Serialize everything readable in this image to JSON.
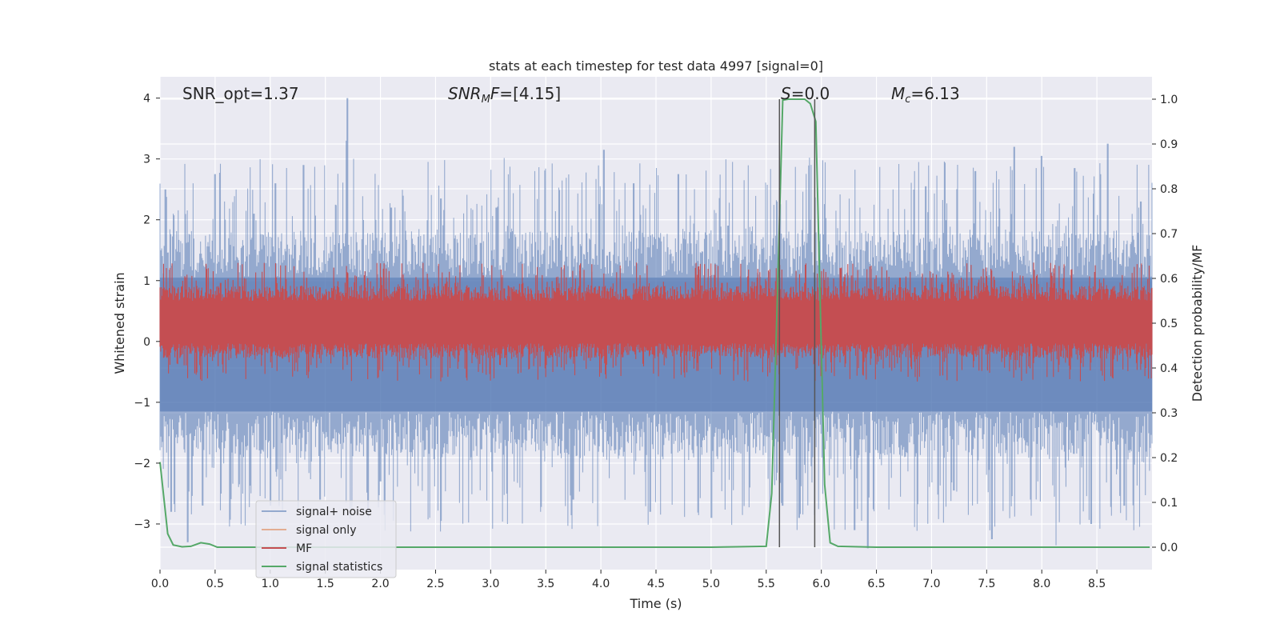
{
  "chart_data": {
    "type": "line",
    "title": "stats at each timestep for test data 4997 [signal=0]",
    "xlabel": "Time (s)",
    "ylabel_left": "Whitened strain",
    "ylabel_right": "Detection probability/MF",
    "xlim": [
      0.0,
      9.0
    ],
    "ylim_left": [
      -3.75,
      4.35
    ],
    "ylim_right": [
      -0.05,
      1.05
    ],
    "x_ticks": [
      0.0,
      0.5,
      1.0,
      1.5,
      2.0,
      2.5,
      3.0,
      3.5,
      4.0,
      4.5,
      5.0,
      5.5,
      6.0,
      6.5,
      7.0,
      7.5,
      8.0,
      8.5
    ],
    "x_tick_labels": [
      "0.0",
      "0.5",
      "1.0",
      "1.5",
      "2.0",
      "2.5",
      "3.0",
      "3.5",
      "4.0",
      "4.5",
      "5.0",
      "5.5",
      "6.0",
      "6.5",
      "7.0",
      "7.5",
      "8.0",
      "8.5"
    ],
    "y_left_ticks": [
      -3,
      -2,
      -1,
      0,
      1,
      2,
      3,
      4
    ],
    "y_left_tick_labels": [
      "−3",
      "−2",
      "−1",
      "0",
      "1",
      "2",
      "3",
      "4"
    ],
    "y_right_ticks": [
      0.0,
      0.1,
      0.2,
      0.3,
      0.4,
      0.5,
      0.6,
      0.7,
      0.8,
      0.9,
      1.0
    ],
    "y_right_tick_labels": [
      "0.0",
      "0.1",
      "0.2",
      "0.3",
      "0.4",
      "0.5",
      "0.6",
      "0.7",
      "0.8",
      "0.9",
      "1.0"
    ],
    "grid": true,
    "legend_position": "lower-left",
    "legend": [
      {
        "name": "signal+ noise",
        "color": "#4c72b0"
      },
      {
        "name": "signal only",
        "color": "#dd8452"
      },
      {
        "name": "MF",
        "color": "#c44e52"
      },
      {
        "name": "signal statistics",
        "color": "#55a868"
      }
    ],
    "annotations": [
      {
        "id": "snr-opt",
        "prefix": "SNR_opt",
        "sub": "",
        "value": "1.37",
        "x": 0.2,
        "italic": false
      },
      {
        "id": "snr-mf",
        "prefix": "SNR",
        "sub": "M",
        "suffix": "F",
        "value": "[4.15]",
        "x": 2.6,
        "italic": true
      },
      {
        "id": "s-stat",
        "prefix": "S",
        "sub": "",
        "value": "0.0",
        "x": 5.6,
        "italic": true
      },
      {
        "id": "mc",
        "prefix": "M",
        "sub": "c",
        "value": "6.13",
        "x": 6.6,
        "italic": true
      }
    ],
    "series": [
      {
        "name": "signal+ noise",
        "axis": "left",
        "kind": "noise_band",
        "core_range": [
          -1.15,
          1.05
        ],
        "n_points": 1200,
        "spikes_up": [
          [
            0.05,
            2.5
          ],
          [
            0.3,
            2.6
          ],
          [
            0.5,
            2.75
          ],
          [
            0.85,
            2.1
          ],
          [
            1.05,
            2.6
          ],
          [
            1.3,
            2.9
          ],
          [
            1.7,
            4.0
          ],
          [
            1.69,
            3.3
          ],
          [
            2.1,
            2.2
          ],
          [
            2.55,
            2.35
          ],
          [
            3.05,
            2.2
          ],
          [
            3.4,
            2.8
          ],
          [
            4.03,
            3.15
          ],
          [
            4.3,
            2.6
          ],
          [
            4.7,
            2.75
          ],
          [
            5.3,
            2.65
          ],
          [
            5.9,
            2.0
          ],
          [
            6.35,
            2.2
          ],
          [
            6.65,
            2.5
          ],
          [
            6.95,
            2.55
          ],
          [
            7.4,
            2.8
          ],
          [
            7.75,
            3.2
          ],
          [
            8.0,
            3.05
          ],
          [
            8.3,
            2.85
          ],
          [
            8.6,
            3.25
          ],
          [
            8.9,
            2.3
          ]
        ],
        "spikes_down": [
          [
            0.1,
            -2.8
          ],
          [
            0.25,
            -3.3
          ],
          [
            0.55,
            -2.5
          ],
          [
            0.75,
            -2.5
          ],
          [
            1.0,
            -2.7
          ],
          [
            1.45,
            -2.6
          ],
          [
            2.0,
            -2.3
          ],
          [
            2.55,
            -2.95
          ],
          [
            3.15,
            -2.5
          ],
          [
            3.75,
            -2.6
          ],
          [
            4.45,
            -2.8
          ],
          [
            5.0,
            -2.9
          ],
          [
            5.35,
            -2.4
          ],
          [
            5.65,
            -2.7
          ],
          [
            5.8,
            -2.9
          ],
          [
            6.3,
            -3.1
          ],
          [
            6.42,
            -3.4
          ],
          [
            7.2,
            -2.45
          ],
          [
            7.55,
            -3.25
          ],
          [
            7.9,
            -2.6
          ],
          [
            8.13,
            -3.35
          ],
          [
            8.45,
            -3.0
          ],
          [
            8.75,
            -2.7
          ]
        ]
      },
      {
        "name": "MF",
        "axis": "right",
        "kind": "noise_band",
        "center": 0.5,
        "core_range": [
          0.455,
          0.55
        ],
        "n_points": 1400,
        "spikes_up": [
          [
            0.35,
            0.56
          ],
          [
            0.55,
            0.59
          ],
          [
            0.7,
            0.57
          ],
          [
            1.3,
            0.58
          ],
          [
            1.45,
            0.58
          ],
          [
            2.8,
            0.58
          ],
          [
            4.5,
            0.58
          ],
          [
            5.1,
            0.59
          ],
          [
            5.62,
            0.63
          ],
          [
            5.95,
            0.57
          ],
          [
            6.85,
            0.58
          ],
          [
            7.55,
            0.58
          ],
          [
            8.2,
            0.6
          ],
          [
            8.5,
            0.57
          ]
        ],
        "spikes_down": [
          [
            0.2,
            0.45
          ],
          [
            1.1,
            0.45
          ],
          [
            2.3,
            0.45
          ],
          [
            4.0,
            0.44
          ],
          [
            5.5,
            0.44
          ],
          [
            6.5,
            0.45
          ],
          [
            7.8,
            0.45
          ]
        ]
      },
      {
        "name": "signal statistics",
        "axis": "right",
        "kind": "line",
        "x": [
          0.0,
          0.07,
          0.12,
          0.2,
          0.28,
          0.37,
          0.45,
          0.52,
          1.0,
          2.0,
          3.0,
          4.0,
          5.0,
          5.5,
          5.55,
          5.6,
          5.65,
          5.7,
          5.85,
          5.9,
          5.95,
          6.03,
          6.08,
          6.15,
          6.5,
          7.0,
          8.0,
          8.98
        ],
        "values": [
          0.19,
          0.03,
          0.005,
          0.001,
          0.002,
          0.01,
          0.007,
          0.0,
          0.0,
          0.0,
          0.0,
          0.0,
          0.0,
          0.002,
          0.12,
          0.55,
          0.998,
          1.0,
          1.0,
          0.99,
          0.95,
          0.14,
          0.01,
          0.002,
          0.0,
          0.0,
          0.0,
          0.0
        ]
      },
      {
        "name": "signal only",
        "axis": "left",
        "kind": "line",
        "x": [],
        "values": []
      }
    ],
    "vertical_lines": [
      {
        "x": 5.62,
        "ymin_right": 0.0,
        "ymax_right": 1.0
      },
      {
        "x": 5.94,
        "ymin_right": 0.0,
        "ymax_right": 1.0
      }
    ]
  }
}
